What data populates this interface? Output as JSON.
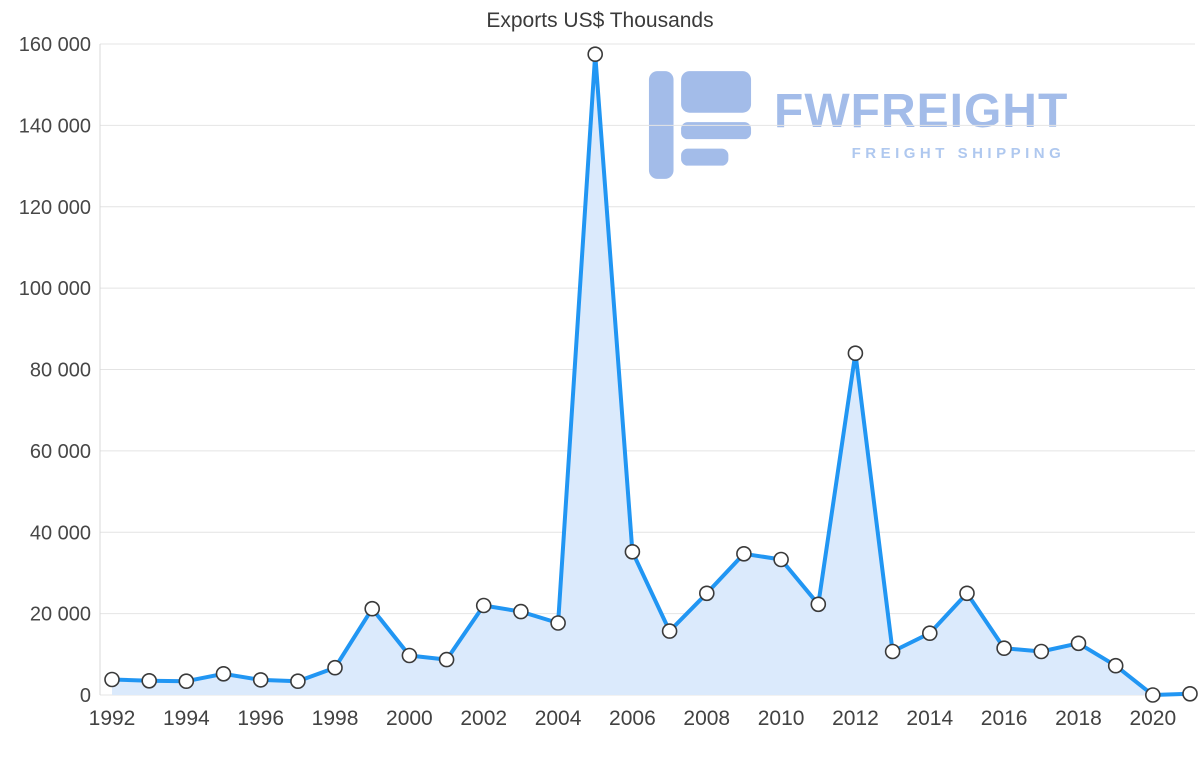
{
  "title": "Exports US$ Thousands",
  "watermark": {
    "brand": "FWFREIGHT",
    "tagline": "FREIGHT SHIPPING"
  },
  "colors": {
    "line": "#2196f3",
    "fill": "#dbeafc",
    "grid": "#e4e4e4",
    "axis_line": "#d8d8d8",
    "marker_fill": "#ffffff",
    "marker_stroke": "#3a3a3a",
    "watermark": "#a3bce9",
    "title_text": "#3b3b3b",
    "tick_text": "#474747"
  },
  "chart_data": {
    "type": "area",
    "title": "Exports US$ Thousands",
    "xlabel": "",
    "ylabel": "",
    "legend": "none",
    "grid": "horizontal",
    "ylim": [
      0,
      160000
    ],
    "x": [
      1992,
      1993,
      1994,
      1995,
      1996,
      1997,
      1998,
      1999,
      2000,
      2001,
      2002,
      2003,
      2004,
      2005,
      2006,
      2007,
      2008,
      2009,
      2010,
      2011,
      2012,
      2013,
      2014,
      2015,
      2016,
      2017,
      2018,
      2019,
      2020,
      2021
    ],
    "values": [
      3800,
      3500,
      3400,
      5200,
      3700,
      3400,
      6700,
      21200,
      9700,
      8700,
      22000,
      20500,
      17700,
      157500,
      35200,
      15700,
      25000,
      34700,
      33300,
      22300,
      84000,
      10700,
      15200,
      25000,
      11500,
      10700,
      12700,
      7200,
      0,
      300
    ],
    "yticks": [
      0,
      20000,
      40000,
      60000,
      80000,
      100000,
      120000,
      140000,
      160000
    ],
    "ytick_labels": [
      "0",
      "20 000",
      "40 000",
      "60 000",
      "80 000",
      "100 000",
      "120 000",
      "140 000",
      "160 000"
    ],
    "xtick_years": [
      1992,
      1994,
      1996,
      1998,
      2000,
      2002,
      2004,
      2006,
      2008,
      2010,
      2012,
      2014,
      2016,
      2018,
      2020
    ]
  }
}
